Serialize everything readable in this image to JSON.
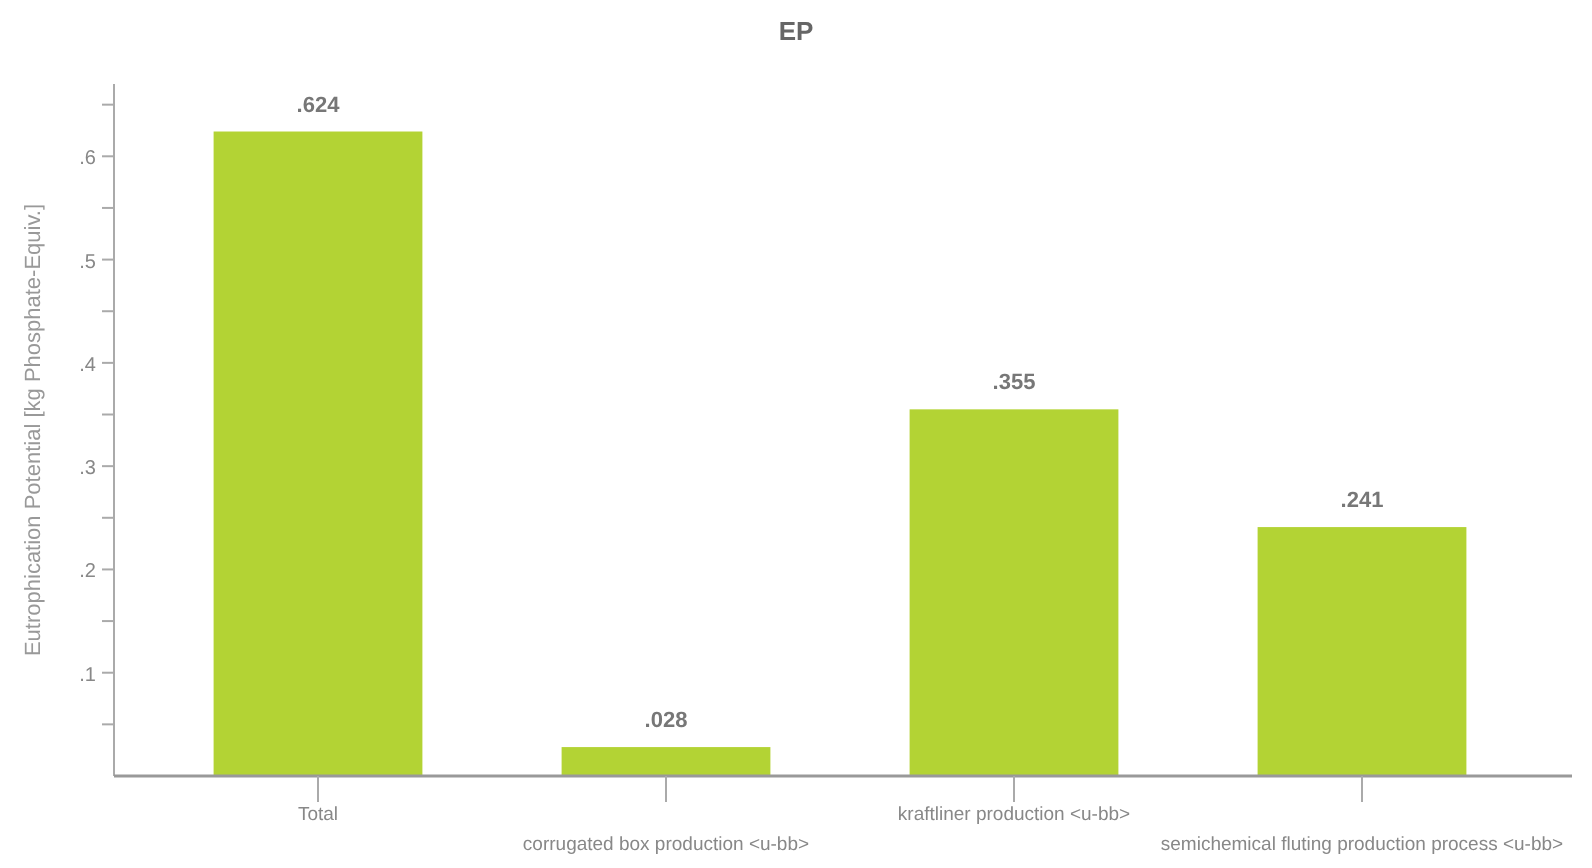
{
  "chart_data": {
    "type": "bar",
    "title": "EP",
    "ylabel": "Eutrophication Potential [kg Phosphate-Equiv.]",
    "categories": [
      "Total",
      "corrugated box production <u-bb>",
      "kraftliner production <u-bb>",
      "semichemical fluting production process <u-bb>"
    ],
    "values": [
      0.624,
      0.028,
      0.355,
      0.241
    ],
    "color": "#b3d334",
    "value_labels": [
      ".624",
      ".028",
      ".355",
      ".241"
    ],
    "ylim": [
      0,
      0.67
    ],
    "yticks": [
      {
        "value": 0.05,
        "label": null
      },
      {
        "value": 0.1,
        "label": ".1"
      },
      {
        "value": 0.15,
        "label": null
      },
      {
        "value": 0.2,
        "label": ".2"
      },
      {
        "value": 0.25,
        "label": null
      },
      {
        "value": 0.3,
        "label": ".3"
      },
      {
        "value": 0.35,
        "label": null
      },
      {
        "value": 0.4,
        "label": ".4"
      },
      {
        "value": 0.45,
        "label": null
      },
      {
        "value": 0.5,
        "label": ".5"
      },
      {
        "value": 0.55,
        "label": null
      },
      {
        "value": 0.6,
        "label": ".6"
      },
      {
        "value": 0.65,
        "label": null
      }
    ],
    "grid": false
  }
}
